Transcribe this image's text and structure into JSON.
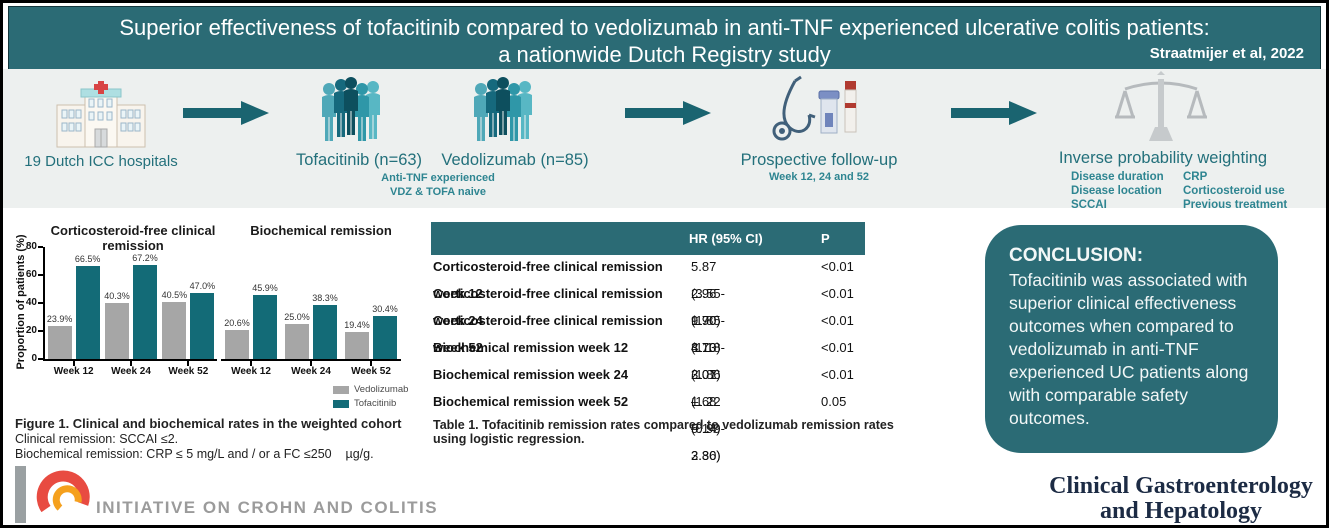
{
  "banner": {
    "title_line1": "Superior effectiveness of tofacitinib compared to vedolizumab in anti-TNF experienced ulcerative colitis patients:",
    "title_line2": "a nationwide Dutch Registry study",
    "citation": "Straatmijer et al, 2022"
  },
  "flow": {
    "hospitals_label": "19 Dutch ICC hospitals",
    "tofacitinib_label": "Tofacitinib (n=63)",
    "vedolizumab_label": "Vedolizumab (n=85)",
    "cohort_note_line1": "Anti-TNF experienced",
    "cohort_note_line2": "VDZ & TOFA naive",
    "followup_label": "Prospective follow-up",
    "followup_sub": "Week 12, 24 and 52",
    "weighting_label": "Inverse probability weighting",
    "weighting_left": [
      "Disease duration",
      "Disease location",
      "SCCAI"
    ],
    "weighting_right": [
      "CRP",
      "Corticosteroid use",
      "Previous treatment"
    ]
  },
  "chart_data": [
    {
      "type": "bar",
      "title": "Corticosteroid-free clinical remission",
      "categories": [
        "Week 12",
        "Week 24",
        "Week 52"
      ],
      "series": [
        {
          "name": "Vedolizumab",
          "values": [
            23.9,
            40.3,
            40.5
          ],
          "color": "#a6a6a6"
        },
        {
          "name": "Tofacitinib",
          "values": [
            66.5,
            67.2,
            47.0
          ],
          "color": "#136b77"
        }
      ],
      "ylabel": "Proportion of patients (%)",
      "ylim": [
        0,
        80
      ],
      "yticks": [
        0,
        20,
        40,
        60,
        80
      ],
      "legend_position": "bottom-right",
      "grid": false
    },
    {
      "type": "bar",
      "title": "Biochemical remission",
      "categories": [
        "Week 12",
        "Week 24",
        "Week 52"
      ],
      "series": [
        {
          "name": "Vedolizumab",
          "values": [
            20.6,
            25.0,
            19.4
          ],
          "color": "#a6a6a6"
        },
        {
          "name": "Tofacitinib",
          "values": [
            45.9,
            38.3,
            30.4
          ],
          "color": "#136b77"
        }
      ],
      "ylabel": "Proportion of patients (%)",
      "ylim": [
        0,
        80
      ],
      "yticks": [
        0,
        20,
        40,
        60,
        80
      ],
      "grid": false
    }
  ],
  "figure_caption": {
    "line1": "Figure 1. Clinical and biochemical rates in the weighted cohort",
    "line2": "Clinical remission: SCCAI ≤2.",
    "line3": "Biochemical remission: CRP ≤ 5 mg/L and / or a FC ≤250    µg/g."
  },
  "table": {
    "col_hr": "HR (95% CI)",
    "col_p": "P",
    "rows": [
      {
        "label": "Corticosteroid-free clinical remission week 12",
        "hr": "5.87 (3.55-9.70)",
        "p": "<0.01"
      },
      {
        "label": "Corticosteroid-free clinical remission week 24",
        "hr": "2.96 (1.85-4.73)",
        "p": "<0.01"
      },
      {
        "label": "Corticosteroid-free clinical remission week 52",
        "hr": "1.90 (1.18-3.07)",
        "p": "<0.01"
      },
      {
        "label": "Biochemical remission week 12",
        "hr": "3.10 (1.86 – 5.14)",
        "p": "<0.01"
      },
      {
        "label": "Biochemical remission week 24",
        "hr": "2.01 (1.22 – 3.30)",
        "p": "<0.01"
      },
      {
        "label": "Biochemical remission week 52",
        "hr": "1.68 (0.99-2.86)",
        "p": "0.05"
      }
    ],
    "caption": "Table 1. Tofacitinib remission rates compared to vedolizumab remission rates using logistic regression."
  },
  "conclusion": {
    "heading": "CONCLUSION:",
    "body": "Tofacitinib was associated with superior clinical effectiveness outcomes when compared to vedolizumab in anti-TNF experienced UC patients along with comparable safety outcomes."
  },
  "journal": {
    "line1": "Clinical Gastroenterology",
    "line2": "and Hepatology"
  },
  "logo": {
    "text": "INITIATIVE ON CROHN AND COLITIS"
  },
  "colors": {
    "teal_banner": "#2b6b75",
    "bar_teal": "#136b77",
    "bar_gray": "#a6a6a6",
    "flow_background": "#edf0ef",
    "label_teal": "#23707b",
    "logo_red": "#e84b41",
    "logo_orange": "#f5a01d",
    "journal_navy": "#1c2b44"
  }
}
